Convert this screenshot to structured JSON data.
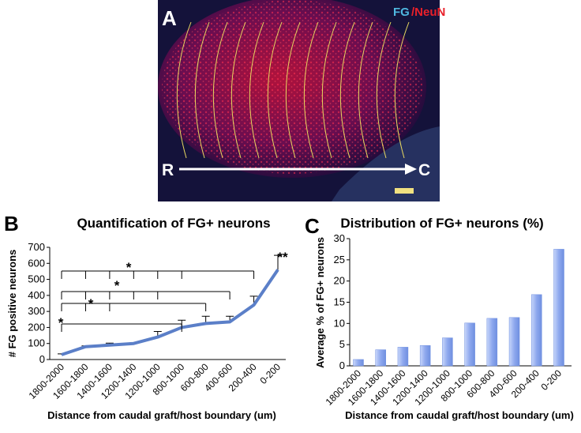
{
  "panel_a": {
    "label": "A",
    "stain_fg": "FG",
    "stain_neun": "/NeuN",
    "rostral": "R",
    "caudal": "C"
  },
  "chart_data": [
    {
      "type": "line",
      "panel_label": "B",
      "title": "Quantification of FG+ neurons",
      "x_label": "Distance from caudal graft/host boundary (um)",
      "y_label": "# FG positive  neurons",
      "categories": [
        "1800-2000",
        "1600-1800",
        "1400-1600",
        "1200-1400",
        "1200-1000",
        "800-1000",
        "600-800",
        "400-600",
        "200-400",
        "0-200"
      ],
      "values": [
        30,
        80,
        90,
        100,
        140,
        200,
        225,
        235,
        340,
        560
      ],
      "errors": [
        5,
        5,
        12,
        5,
        35,
        45,
        45,
        35,
        55,
        90
      ],
      "color": "#5b7fc8",
      "ylim": [
        0,
        700
      ],
      "yticks": [
        0,
        100,
        200,
        300,
        400,
        500,
        600,
        700
      ],
      "annotations": [
        "*",
        "*",
        "*",
        "*",
        "**"
      ]
    },
    {
      "type": "bar",
      "panel_label": "C",
      "title": "Distribution of FG+ neurons (%)",
      "x_label": "Distance from caudal graft/host boundary (um)",
      "y_label": "Average % of FG+ neurons",
      "categories": [
        "1800-2000",
        "1600-1800",
        "1400-1600",
        "1200-1400",
        "1200-1000",
        "800-1000",
        "600-800",
        "400-600",
        "200-400",
        "0-200"
      ],
      "values": [
        1.5,
        3.8,
        4.4,
        4.8,
        6.6,
        10.1,
        11.2,
        11.4,
        16.8,
        27.5
      ],
      "color": "#6f8fe0",
      "ylim": [
        0,
        30
      ],
      "yticks": [
        0,
        5,
        10,
        15,
        20,
        25,
        30
      ]
    }
  ]
}
